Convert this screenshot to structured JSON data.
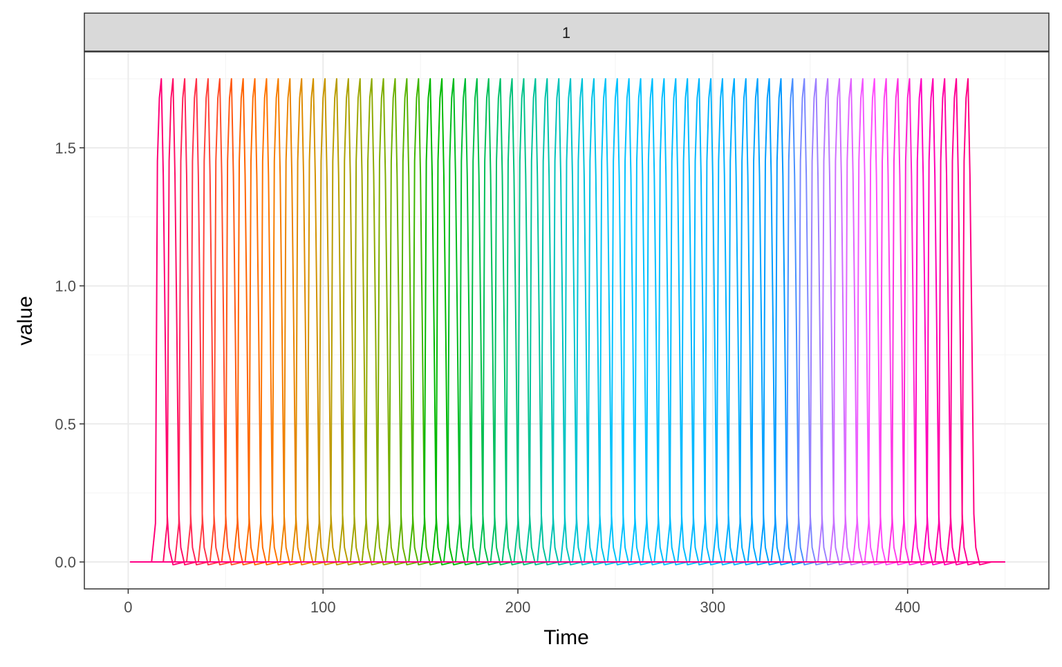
{
  "chart_data": {
    "type": "line",
    "facet_label": "1",
    "xlabel": "Time",
    "ylabel": "value",
    "xlim": [
      -22.5,
      472.5
    ],
    "ylim": [
      -0.0975,
      1.8475
    ],
    "x_ticks": [
      0,
      100,
      200,
      300,
      400
    ],
    "x_tick_labels": [
      "0",
      "100",
      "200",
      "300",
      "400"
    ],
    "y_ticks": [
      0,
      0.5,
      1,
      1.5
    ],
    "y_tick_labels": [
      "0.0",
      "0.5",
      "1.0",
      "1.5"
    ],
    "grid": true,
    "legend": "none",
    "x_range": [
      1,
      450
    ],
    "baseline_value": 0,
    "peak_value": 1.75,
    "undershoot_value": -0.01,
    "pulse_width": 11,
    "peak_times": [
      17,
      23,
      29,
      35,
      41,
      47,
      53,
      59,
      65,
      71,
      77,
      83,
      89,
      95,
      101,
      107,
      113,
      119,
      125,
      131,
      137,
      143,
      149,
      155,
      161,
      167,
      173,
      179,
      185,
      191,
      197,
      203,
      209,
      215,
      221,
      227,
      233,
      239,
      245,
      251,
      257,
      263,
      269,
      275,
      281,
      287,
      293,
      299,
      305,
      311,
      317,
      323,
      329,
      335,
      341,
      347,
      353,
      359,
      365,
      371,
      377,
      383,
      389,
      395,
      401,
      407,
      413,
      419,
      425,
      431
    ],
    "colors": {
      "panel_border": "#333333",
      "grid_major": "#ebebeb",
      "grid_minor": "#f5f5f5",
      "strip_fill": "#d9d9d9"
    }
  }
}
